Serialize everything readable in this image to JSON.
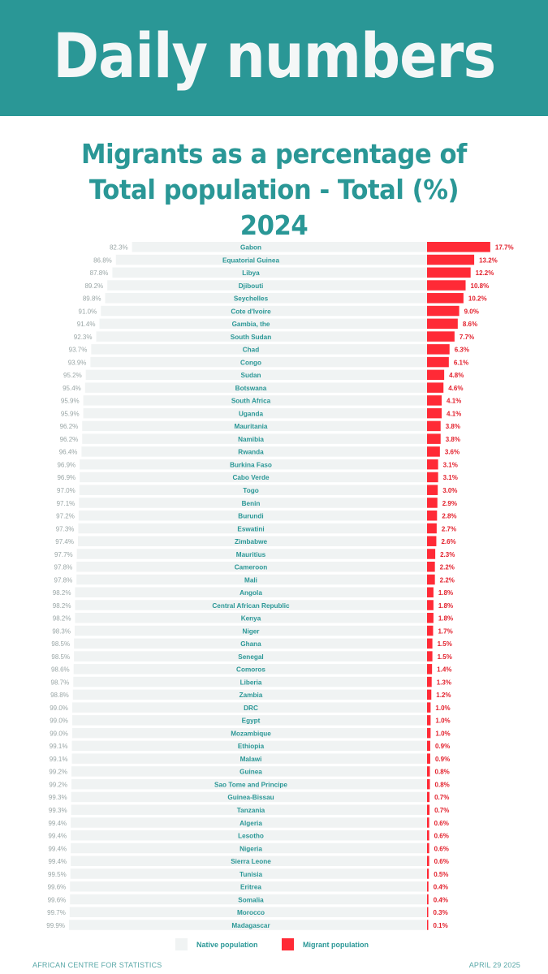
{
  "banner": {
    "title": "Daily numbers"
  },
  "colors": {
    "brand": "#2a9796",
    "migrant": "#ff2a36",
    "native": "#f0f3f3"
  },
  "chart_data": {
    "type": "bar",
    "stacked": true,
    "orientation": "horizontal",
    "title": "Migrants as a percentage of Total population - Total (%) 2024",
    "legend": [
      {
        "name": "Native population",
        "color": "#f0f3f3"
      },
      {
        "name": "Migrant population",
        "color": "#ff2a36"
      }
    ],
    "categories": [
      "Gabon",
      "Equatorial Guinea",
      "Libya",
      "Djibouti",
      "Seychelles",
      "Cote d'Ivoire",
      "Gambia, the",
      "South Sudan",
      "Chad",
      "Congo",
      "Sudan",
      "Botswana",
      "South Africa",
      "Uganda",
      "Mauritania",
      "Namibia",
      "Rwanda",
      "Burkina Faso",
      "Cabo Verde",
      "Togo",
      "Benin",
      "Burundi",
      "Eswatini",
      "Zimbabwe",
      "Mauritius",
      "Cameroon",
      "Mali",
      "Angola",
      "Central African Republic",
      "Kenya",
      "Niger",
      "Ghana",
      "Senegal",
      "Comoros",
      "Liberia",
      "Zambia",
      "DRC",
      "Egypt",
      "Mozambique",
      "Ethiopia",
      "Malawi",
      "Guinea",
      "Sao Tome and Principe",
      "Guinea-Bissau",
      "Tanzania",
      "Algeria",
      "Lesotho",
      "Nigeria",
      "Sierra Leone",
      "Tunisia",
      "Eritrea",
      "Somalia",
      "Morocco",
      "Madagascar"
    ],
    "series": [
      {
        "name": "Native population",
        "values": [
          82.3,
          86.8,
          87.8,
          89.2,
          89.8,
          91.0,
          91.4,
          92.3,
          93.7,
          93.9,
          95.2,
          95.4,
          95.9,
          95.9,
          96.2,
          96.2,
          96.4,
          96.9,
          96.9,
          97.0,
          97.1,
          97.2,
          97.3,
          97.4,
          97.7,
          97.8,
          97.8,
          98.2,
          98.2,
          98.2,
          98.3,
          98.5,
          98.5,
          98.6,
          98.7,
          98.8,
          99.0,
          99.0,
          99.0,
          99.1,
          99.1,
          99.2,
          99.2,
          99.3,
          99.3,
          99.4,
          99.4,
          99.4,
          99.4,
          99.5,
          99.6,
          99.6,
          99.7,
          99.9
        ]
      },
      {
        "name": "Migrant population",
        "values": [
          17.7,
          13.2,
          12.2,
          10.8,
          10.2,
          9.0,
          8.6,
          7.7,
          6.3,
          6.1,
          4.8,
          4.6,
          4.1,
          4.1,
          3.8,
          3.8,
          3.6,
          3.1,
          3.1,
          3.0,
          2.9,
          2.8,
          2.7,
          2.6,
          2.3,
          2.2,
          2.2,
          1.8,
          1.8,
          1.8,
          1.7,
          1.5,
          1.5,
          1.4,
          1.3,
          1.2,
          1.0,
          1.0,
          1.0,
          0.9,
          0.9,
          0.8,
          0.8,
          0.7,
          0.7,
          0.6,
          0.6,
          0.6,
          0.6,
          0.5,
          0.4,
          0.4,
          0.3,
          0.1
        ]
      }
    ],
    "value_suffix": "%"
  },
  "footer": {
    "source": "AFRICAN CENTRE FOR STATISTICS",
    "date": "APRIL 29 2025"
  }
}
